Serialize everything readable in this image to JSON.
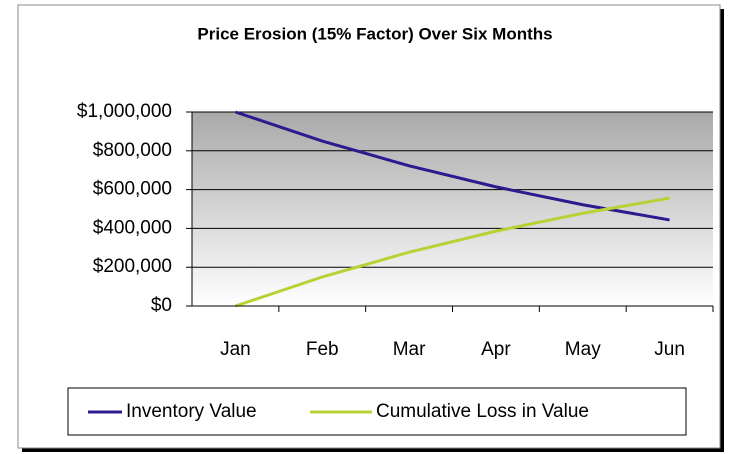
{
  "chart_data": {
    "type": "line",
    "title": "Price Erosion (15% Factor) Over Six Months",
    "categories": [
      "Jan",
      "Feb",
      "Mar",
      "Apr",
      "May",
      "Jun"
    ],
    "series": [
      {
        "name": "Inventory Value",
        "color": "#2b1b8f",
        "values": [
          1000000,
          850000,
          722500,
          614125,
          522006,
          443705
        ]
      },
      {
        "name": "Cumulative Loss in Value",
        "color": "#b5d334",
        "values": [
          0,
          150000,
          277500,
          385875,
          477994,
          556295
        ]
      }
    ],
    "ylim": [
      0,
      1000000
    ],
    "yticks": [
      {
        "value": 0,
        "label": "$0"
      },
      {
        "value": 200000,
        "label": "$200,000"
      },
      {
        "value": 400000,
        "label": "$400,000"
      },
      {
        "value": 600000,
        "label": "$600,000"
      },
      {
        "value": 800000,
        "label": "$800,000"
      },
      {
        "value": 1000000,
        "label": "$1,000,000"
      }
    ],
    "grid": true,
    "legend": "bottom"
  }
}
